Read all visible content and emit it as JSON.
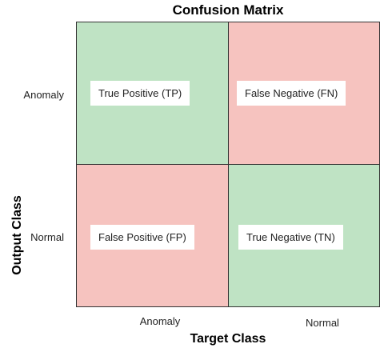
{
  "title": "Confusion Matrix",
  "axes": {
    "x_title": "Target Class",
    "y_title": "Output Class",
    "x_categories": [
      "Anomaly",
      "Normal"
    ],
    "y_categories": [
      "Anomaly",
      "Normal"
    ]
  },
  "cells": {
    "tp": {
      "label": "True Positive (TP)",
      "color": "#bfe3c4"
    },
    "fn": {
      "label": "False Negative (FN)",
      "color": "#f6c3bf"
    },
    "fp": {
      "label": "False Positive (FP)",
      "color": "#f6c3bf"
    },
    "tn": {
      "label": "True Negative (TN)",
      "color": "#bfe3c4"
    }
  }
}
